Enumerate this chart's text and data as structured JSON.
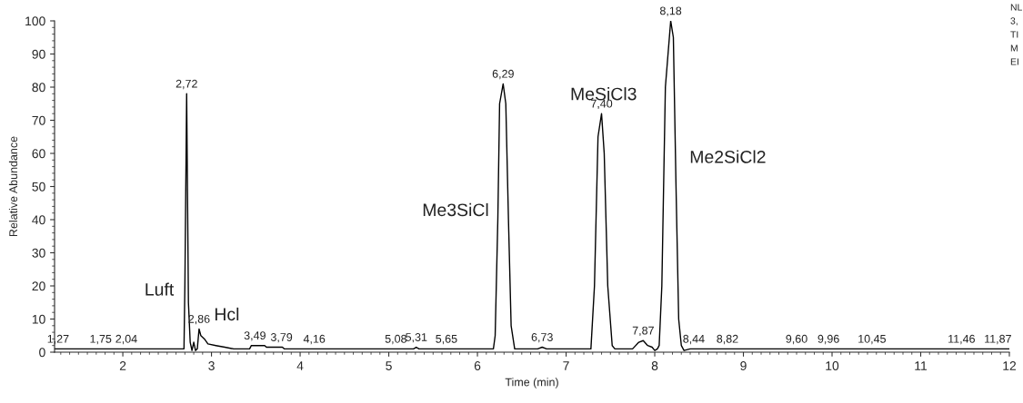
{
  "chart_data": {
    "type": "line",
    "xlabel": "Time (min)",
    "ylabel": "Relative Abundance",
    "series": [
      {
        "color": "#000000",
        "x": [
          1.23,
          1.5,
          2.0,
          2.5,
          2.68,
          2.69,
          2.7,
          2.72,
          2.74,
          2.76,
          2.78,
          2.8,
          2.82,
          2.84,
          2.86,
          2.88,
          2.92,
          2.96,
          3.05,
          3.15,
          3.25,
          3.3,
          3.43,
          3.45,
          3.6,
          3.62,
          3.8,
          3.82,
          4.5,
          5.0,
          5.28,
          5.31,
          5.34,
          6.0,
          6.18,
          6.2,
          6.23,
          6.25,
          6.29,
          6.32,
          6.35,
          6.38,
          6.42,
          6.68,
          6.73,
          6.78,
          7.28,
          7.32,
          7.36,
          7.4,
          7.43,
          7.47,
          7.52,
          7.55,
          7.75,
          7.82,
          7.87,
          7.92,
          7.97,
          8.0,
          8.03,
          8.05,
          8.08,
          8.12,
          8.18,
          8.21,
          8.24,
          8.27,
          8.3,
          8.33,
          8.4,
          9.0,
          10.0,
          11.0,
          12.0
        ],
        "values": [
          1,
          1,
          1,
          1,
          1,
          1,
          20,
          78,
          15,
          3,
          0.5,
          3,
          0.5,
          1,
          7,
          5,
          4,
          2.5,
          2,
          1.5,
          1,
          1,
          1,
          2,
          2,
          1.5,
          1.5,
          1,
          1,
          1,
          1,
          1.5,
          1,
          1,
          1,
          5,
          40,
          75,
          81,
          75,
          40,
          8,
          1,
          1,
          1.5,
          1,
          1,
          20,
          65,
          72,
          60,
          20,
          2,
          1,
          1,
          3,
          3.5,
          2,
          1.5,
          0.5,
          1,
          2,
          20,
          80,
          100,
          95,
          50,
          10,
          2,
          0.5,
          1,
          1,
          1,
          1,
          1
        ]
      }
    ],
    "xlim": [
      1.23,
      12
    ],
    "xticks": [
      2,
      3,
      4,
      5,
      6,
      7,
      8,
      9,
      10,
      11,
      12
    ],
    "ylim": [
      0,
      100
    ],
    "yticks": [
      0,
      10,
      20,
      30,
      40,
      50,
      60,
      70,
      80,
      90,
      100
    ],
    "grid": false,
    "marker": "none",
    "line_style": "solid",
    "annotations": [
      {
        "text": "1,27",
        "x": 1.27,
        "y": 1
      },
      {
        "text": "1,75",
        "x": 1.75,
        "y": 1
      },
      {
        "text": "2,04",
        "x": 2.04,
        "y": 1
      },
      {
        "text": "2,72",
        "x": 2.72,
        "y": 78
      },
      {
        "text": "2,86",
        "x": 2.86,
        "y": 7
      },
      {
        "text": "3,49",
        "x": 3.49,
        "y": 2
      },
      {
        "text": "3,79",
        "x": 3.79,
        "y": 1.5
      },
      {
        "text": "4,16",
        "x": 4.16,
        "y": 1
      },
      {
        "text": "5,08",
        "x": 5.08,
        "y": 1
      },
      {
        "text": "5,31",
        "x": 5.31,
        "y": 1.5
      },
      {
        "text": "5,65",
        "x": 5.65,
        "y": 1
      },
      {
        "text": "6,29",
        "x": 6.29,
        "y": 81
      },
      {
        "text": "6,73",
        "x": 6.73,
        "y": 1.5
      },
      {
        "text": "7,40",
        "x": 7.4,
        "y": 72
      },
      {
        "text": "7,87",
        "x": 7.87,
        "y": 3.5
      },
      {
        "text": "8,18",
        "x": 8.18,
        "y": 100
      },
      {
        "text": "8,44",
        "x": 8.44,
        "y": 1
      },
      {
        "text": "8,82",
        "x": 8.82,
        "y": 1
      },
      {
        "text": "9,60",
        "x": 9.6,
        "y": 1
      },
      {
        "text": "9,96",
        "x": 9.96,
        "y": 1
      },
      {
        "text": "10,45",
        "x": 10.45,
        "y": 1
      },
      {
        "text": "11,46",
        "x": 11.46,
        "y": 1
      },
      {
        "text": "11,87",
        "x": 11.87,
        "y": 1
      },
      "Luft",
      "Hcl",
      "Me3SiCl",
      "MeSiCl3",
      "Me2SiCl2",
      "NL",
      "3,",
      "TI",
      "M",
      "EI"
    ]
  }
}
